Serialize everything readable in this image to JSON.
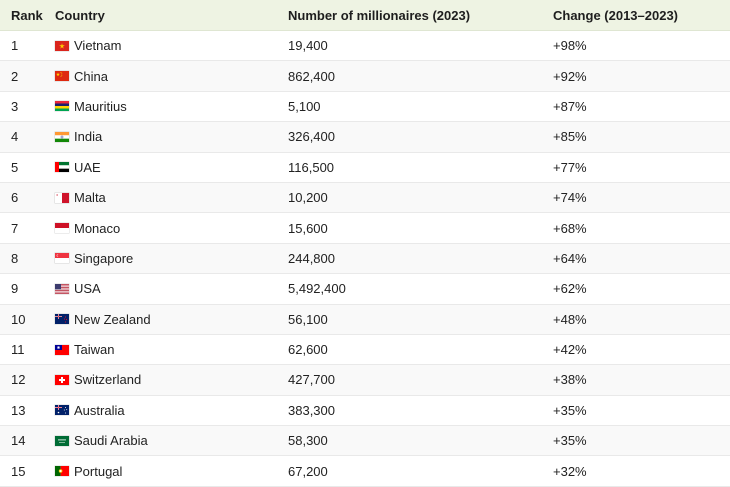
{
  "headers": {
    "rank": "Rank",
    "country": "Country",
    "millionaires": "Number of millionaires (2023)",
    "change": "Change (2013–2023)"
  },
  "rows": [
    {
      "rank": "1",
      "country": "Vietnam",
      "flag": "vietnam-flag-icon",
      "millionaires": "19,400",
      "change": "+98%"
    },
    {
      "rank": "2",
      "country": "China",
      "flag": "china-flag-icon",
      "millionaires": "862,400",
      "change": "+92%"
    },
    {
      "rank": "3",
      "country": "Mauritius",
      "flag": "mauritius-flag-icon",
      "millionaires": "5,100",
      "change": "+87%"
    },
    {
      "rank": "4",
      "country": "India",
      "flag": "india-flag-icon",
      "millionaires": "326,400",
      "change": "+85%"
    },
    {
      "rank": "5",
      "country": "UAE",
      "flag": "uae-flag-icon",
      "millionaires": "116,500",
      "change": "+77%"
    },
    {
      "rank": "6",
      "country": "Malta",
      "flag": "malta-flag-icon",
      "millionaires": "10,200",
      "change": "+74%"
    },
    {
      "rank": "7",
      "country": "Monaco",
      "flag": "monaco-flag-icon",
      "millionaires": "15,600",
      "change": "+68%"
    },
    {
      "rank": "8",
      "country": "Singapore",
      "flag": "singapore-flag-icon",
      "millionaires": "244,800",
      "change": "+64%"
    },
    {
      "rank": "9",
      "country": "USA",
      "flag": "usa-flag-icon",
      "millionaires": "5,492,400",
      "change": "+62%"
    },
    {
      "rank": "10",
      "country": "New Zealand",
      "flag": "new-zealand-flag-icon",
      "millionaires": "56,100",
      "change": "+48%"
    },
    {
      "rank": "11",
      "country": "Taiwan",
      "flag": "taiwan-flag-icon",
      "millionaires": "62,600",
      "change": "+42%"
    },
    {
      "rank": "12",
      "country": "Switzerland",
      "flag": "switzerland-flag-icon",
      "millionaires": "427,700",
      "change": "+38%"
    },
    {
      "rank": "13",
      "country": "Australia",
      "flag": "australia-flag-icon",
      "millionaires": "383,300",
      "change": "+35%"
    },
    {
      "rank": "14",
      "country": "Saudi Arabia",
      "flag": "saudi-arabia-flag-icon",
      "millionaires": "58,300",
      "change": "+35%"
    },
    {
      "rank": "15",
      "country": "Portugal",
      "flag": "portugal-flag-icon",
      "millionaires": "67,200",
      "change": "+32%"
    }
  ],
  "colors": {
    "header_bg": "#eef3e3",
    "row_alt_bg": "#f9f9f9",
    "row_border": "#e9e9e9"
  }
}
